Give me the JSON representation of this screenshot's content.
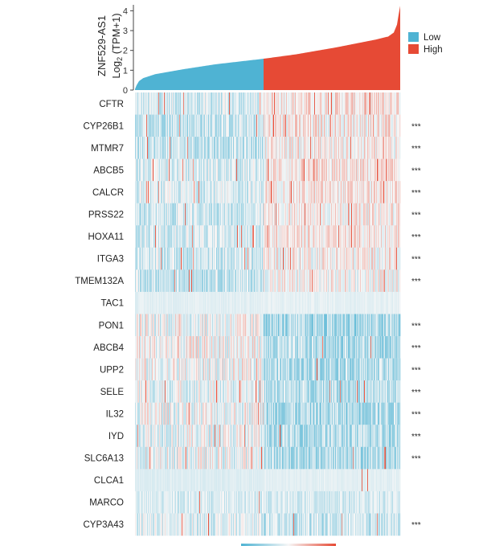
{
  "chart_data": {
    "type": "heatmap",
    "top_panel": {
      "type": "area",
      "ylabel_line1": "ZNF529-AS1",
      "ylabel_line2_main": "Log",
      "ylabel_line2_sub": "2",
      "ylabel_line2_tail": " (TPM+1)",
      "y_ticks": [
        "0",
        "1",
        "2",
        "3",
        "4"
      ],
      "ylim": [
        0,
        4.3
      ],
      "n_samples": 330,
      "split_index": 160,
      "curve_points": [
        [
          0,
          0.05
        ],
        [
          2,
          0.25
        ],
        [
          5,
          0.45
        ],
        [
          10,
          0.6
        ],
        [
          25,
          0.8
        ],
        [
          60,
          1.05
        ],
        [
          100,
          1.3
        ],
        [
          160,
          1.58
        ],
        [
          200,
          1.8
        ],
        [
          250,
          2.15
        ],
        [
          300,
          2.55
        ],
        [
          315,
          2.7
        ],
        [
          322,
          2.9
        ],
        [
          326,
          3.3
        ],
        [
          328,
          3.8
        ],
        [
          330,
          4.25
        ]
      ]
    },
    "groups": [
      {
        "name": "Low",
        "color": "#4fb3d3"
      },
      {
        "name": "High",
        "color": "#e64a35"
      }
    ],
    "rows": [
      {
        "gene": "CFTR",
        "significance": ""
      },
      {
        "gene": "CYP26B1",
        "significance": "***"
      },
      {
        "gene": "MTMR7",
        "significance": "***"
      },
      {
        "gene": "ABCB5",
        "significance": "***"
      },
      {
        "gene": "CALCR",
        "significance": "***"
      },
      {
        "gene": "PRSS22",
        "significance": "***"
      },
      {
        "gene": "HOXA11",
        "significance": "***"
      },
      {
        "gene": "ITGA3",
        "significance": "***"
      },
      {
        "gene": "TMEM132A",
        "significance": "***"
      },
      {
        "gene": "TAC1",
        "significance": ""
      },
      {
        "gene": "PON1",
        "significance": "***"
      },
      {
        "gene": "ABCB4",
        "significance": "***"
      },
      {
        "gene": "UPP2",
        "significance": "***"
      },
      {
        "gene": "SELE",
        "significance": "***"
      },
      {
        "gene": "IL32",
        "significance": "***"
      },
      {
        "gene": "IYD",
        "significance": "***"
      },
      {
        "gene": "SLC6A13",
        "significance": "***"
      },
      {
        "gene": "CLCA1",
        "significance": ""
      },
      {
        "gene": "MARCO",
        "significance": ""
      },
      {
        "gene": "CYP3A43",
        "significance": "***"
      }
    ],
    "colorscale": [
      "#4fb3d3",
      "#f7f7f7",
      "#e64a35"
    ]
  }
}
